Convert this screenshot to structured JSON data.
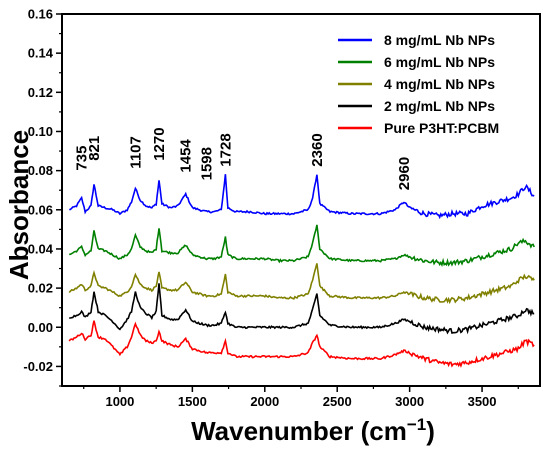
{
  "chart_data": {
    "type": "line",
    "title": "",
    "xlabel": "Wavenumber (cm",
    "xlabel_sup": "−1",
    "xlabel_close": ")",
    "ylabel": "Absorbance",
    "xlim": [
      600,
      3900
    ],
    "ylim": [
      -0.03,
      0.16
    ],
    "x_ticks": [
      1000,
      1500,
      2000,
      2500,
      3000,
      3500
    ],
    "y_ticks": [
      -0.02,
      0.0,
      0.02,
      0.04,
      0.06,
      0.08,
      0.1,
      0.12,
      0.14,
      0.16
    ],
    "y_tick_labels": [
      "-0.02",
      "0.00",
      "0.02",
      "0.04",
      "0.06",
      "0.08",
      "0.10",
      "0.12",
      "0.14",
      "0.16"
    ],
    "grid": false,
    "legend_position": "top-right",
    "peak_annotations": [
      "735",
      "821",
      "1107",
      "1270",
      "1454",
      "1598",
      "1728",
      "2360",
      "2960"
    ],
    "peak_positions": [
      735,
      821,
      1107,
      1270,
      1454,
      1598,
      1728,
      2360,
      2960
    ],
    "series": [
      {
        "name": "8 mg/mL Nb NPs",
        "color": "#0000ff",
        "baseline": 0.058,
        "points": [
          [
            650,
            0.06
          ],
          [
            700,
            0.062
          ],
          [
            735,
            0.066
          ],
          [
            760,
            0.059
          ],
          [
            800,
            0.062
          ],
          [
            821,
            0.073
          ],
          [
            850,
            0.062
          ],
          [
            900,
            0.061
          ],
          [
            950,
            0.06
          ],
          [
            1000,
            0.058
          ],
          [
            1050,
            0.06
          ],
          [
            1080,
            0.064
          ],
          [
            1107,
            0.071
          ],
          [
            1140,
            0.065
          ],
          [
            1180,
            0.062
          ],
          [
            1220,
            0.061
          ],
          [
            1250,
            0.063
          ],
          [
            1270,
            0.075
          ],
          [
            1290,
            0.063
          ],
          [
            1350,
            0.061
          ],
          [
            1400,
            0.062
          ],
          [
            1454,
            0.068
          ],
          [
            1500,
            0.061
          ],
          [
            1550,
            0.06
          ],
          [
            1598,
            0.059
          ],
          [
            1650,
            0.059
          ],
          [
            1700,
            0.06
          ],
          [
            1728,
            0.078
          ],
          [
            1745,
            0.061
          ],
          [
            1800,
            0.059
          ],
          [
            1900,
            0.059
          ],
          [
            2000,
            0.058
          ],
          [
            2100,
            0.058
          ],
          [
            2200,
            0.058
          ],
          [
            2300,
            0.06
          ],
          [
            2330,
            0.066
          ],
          [
            2360,
            0.078
          ],
          [
            2380,
            0.063
          ],
          [
            2450,
            0.059
          ],
          [
            2600,
            0.058
          ],
          [
            2800,
            0.058
          ],
          [
            2900,
            0.06
          ],
          [
            2960,
            0.064
          ],
          [
            3000,
            0.061
          ],
          [
            3100,
            0.058
          ],
          [
            3200,
            0.057
          ],
          [
            3300,
            0.058
          ],
          [
            3400,
            0.058
          ],
          [
            3500,
            0.062
          ],
          [
            3600,
            0.064
          ],
          [
            3700,
            0.066
          ],
          [
            3750,
            0.068
          ],
          [
            3800,
            0.072
          ],
          [
            3860,
            0.067
          ]
        ]
      },
      {
        "name": "6 mg/mL Nb NPs",
        "color": "#008000",
        "baseline": 0.036,
        "points": [
          [
            650,
            0.037
          ],
          [
            700,
            0.039
          ],
          [
            735,
            0.041
          ],
          [
            760,
            0.037
          ],
          [
            800,
            0.039
          ],
          [
            821,
            0.049
          ],
          [
            850,
            0.04
          ],
          [
            900,
            0.039
          ],
          [
            950,
            0.037
          ],
          [
            1000,
            0.035
          ],
          [
            1050,
            0.037
          ],
          [
            1080,
            0.04
          ],
          [
            1107,
            0.047
          ],
          [
            1140,
            0.041
          ],
          [
            1180,
            0.039
          ],
          [
            1220,
            0.038
          ],
          [
            1250,
            0.04
          ],
          [
            1270,
            0.051
          ],
          [
            1290,
            0.039
          ],
          [
            1350,
            0.038
          ],
          [
            1400,
            0.038
          ],
          [
            1454,
            0.042
          ],
          [
            1500,
            0.037
          ],
          [
            1550,
            0.036
          ],
          [
            1598,
            0.035
          ],
          [
            1650,
            0.035
          ],
          [
            1700,
            0.036
          ],
          [
            1728,
            0.046
          ],
          [
            1745,
            0.037
          ],
          [
            1800,
            0.035
          ],
          [
            1900,
            0.035
          ],
          [
            2000,
            0.035
          ],
          [
            2100,
            0.034
          ],
          [
            2200,
            0.034
          ],
          [
            2300,
            0.036
          ],
          [
            2330,
            0.043
          ],
          [
            2360,
            0.052
          ],
          [
            2380,
            0.04
          ],
          [
            2450,
            0.035
          ],
          [
            2600,
            0.034
          ],
          [
            2800,
            0.034
          ],
          [
            2900,
            0.035
          ],
          [
            2960,
            0.037
          ],
          [
            3000,
            0.036
          ],
          [
            3100,
            0.034
          ],
          [
            3200,
            0.033
          ],
          [
            3300,
            0.033
          ],
          [
            3400,
            0.034
          ],
          [
            3500,
            0.036
          ],
          [
            3600,
            0.038
          ],
          [
            3700,
            0.04
          ],
          [
            3750,
            0.043
          ],
          [
            3800,
            0.044
          ],
          [
            3860,
            0.041
          ]
        ]
      },
      {
        "name": "4 mg/mL Nb NPs",
        "color": "#808000",
        "baseline": 0.018,
        "points": [
          [
            650,
            0.018
          ],
          [
            700,
            0.02
          ],
          [
            735,
            0.022
          ],
          [
            760,
            0.019
          ],
          [
            800,
            0.021
          ],
          [
            821,
            0.028
          ],
          [
            850,
            0.021
          ],
          [
            900,
            0.02
          ],
          [
            950,
            0.018
          ],
          [
            1000,
            0.016
          ],
          [
            1050,
            0.018
          ],
          [
            1080,
            0.021
          ],
          [
            1107,
            0.027
          ],
          [
            1140,
            0.022
          ],
          [
            1180,
            0.02
          ],
          [
            1220,
            0.019
          ],
          [
            1250,
            0.021
          ],
          [
            1270,
            0.028
          ],
          [
            1290,
            0.02
          ],
          [
            1350,
            0.019
          ],
          [
            1400,
            0.019
          ],
          [
            1454,
            0.023
          ],
          [
            1500,
            0.018
          ],
          [
            1550,
            0.017
          ],
          [
            1598,
            0.016
          ],
          [
            1650,
            0.016
          ],
          [
            1700,
            0.017
          ],
          [
            1728,
            0.027
          ],
          [
            1745,
            0.018
          ],
          [
            1800,
            0.016
          ],
          [
            1900,
            0.016
          ],
          [
            2000,
            0.016
          ],
          [
            2100,
            0.015
          ],
          [
            2200,
            0.015
          ],
          [
            2300,
            0.017
          ],
          [
            2330,
            0.024
          ],
          [
            2360,
            0.033
          ],
          [
            2380,
            0.021
          ],
          [
            2450,
            0.016
          ],
          [
            2600,
            0.015
          ],
          [
            2800,
            0.015
          ],
          [
            2900,
            0.016
          ],
          [
            2960,
            0.018
          ],
          [
            3000,
            0.017
          ],
          [
            3100,
            0.015
          ],
          [
            3200,
            0.014
          ],
          [
            3300,
            0.014
          ],
          [
            3400,
            0.015
          ],
          [
            3500,
            0.017
          ],
          [
            3600,
            0.019
          ],
          [
            3700,
            0.021
          ],
          [
            3750,
            0.024
          ],
          [
            3800,
            0.026
          ],
          [
            3860,
            0.024
          ]
        ]
      },
      {
        "name": "2 mg/mL Nb NPs",
        "color": "#000000",
        "baseline": 0.004,
        "points": [
          [
            650,
            0.005
          ],
          [
            700,
            0.006
          ],
          [
            735,
            0.008
          ],
          [
            760,
            0.005
          ],
          [
            800,
            0.008
          ],
          [
            821,
            0.018
          ],
          [
            850,
            0.008
          ],
          [
            900,
            0.006
          ],
          [
            950,
            0.003
          ],
          [
            1000,
            -0.001
          ],
          [
            1050,
            0.004
          ],
          [
            1080,
            0.008
          ],
          [
            1107,
            0.018
          ],
          [
            1140,
            0.01
          ],
          [
            1180,
            0.007
          ],
          [
            1220,
            0.005
          ],
          [
            1250,
            0.008
          ],
          [
            1270,
            0.022
          ],
          [
            1290,
            0.006
          ],
          [
            1350,
            0.004
          ],
          [
            1400,
            0.004
          ],
          [
            1454,
            0.009
          ],
          [
            1500,
            0.003
          ],
          [
            1550,
            0.002
          ],
          [
            1598,
            0.001
          ],
          [
            1650,
            0.001
          ],
          [
            1700,
            0.002
          ],
          [
            1728,
            0.008
          ],
          [
            1745,
            0.002
          ],
          [
            1800,
            0.0
          ],
          [
            1900,
            0.0
          ],
          [
            2000,
            0.0
          ],
          [
            2100,
            0.0
          ],
          [
            2200,
            0.0
          ],
          [
            2300,
            0.002
          ],
          [
            2330,
            0.009
          ],
          [
            2360,
            0.017
          ],
          [
            2380,
            0.006
          ],
          [
            2450,
            0.001
          ],
          [
            2600,
            0.0
          ],
          [
            2800,
            0.0
          ],
          [
            2900,
            0.002
          ],
          [
            2960,
            0.004
          ],
          [
            3000,
            0.003
          ],
          [
            3100,
            0.0
          ],
          [
            3200,
            -0.001
          ],
          [
            3300,
            -0.002
          ],
          [
            3400,
            -0.001
          ],
          [
            3500,
            0.001
          ],
          [
            3600,
            0.003
          ],
          [
            3700,
            0.005
          ],
          [
            3750,
            0.006
          ],
          [
            3800,
            0.009
          ],
          [
            3860,
            0.007
          ]
        ]
      },
      {
        "name": "Pure P3HT:PCBM",
        "color": "#ff0000",
        "baseline": -0.008,
        "points": [
          [
            650,
            -0.007
          ],
          [
            700,
            -0.005
          ],
          [
            735,
            -0.003
          ],
          [
            760,
            -0.006
          ],
          [
            800,
            -0.004
          ],
          [
            821,
            0.003
          ],
          [
            850,
            -0.005
          ],
          [
            900,
            -0.006
          ],
          [
            950,
            -0.01
          ],
          [
            1000,
            -0.014
          ],
          [
            1050,
            -0.01
          ],
          [
            1080,
            -0.005
          ],
          [
            1107,
            0.002
          ],
          [
            1140,
            -0.004
          ],
          [
            1180,
            -0.007
          ],
          [
            1220,
            -0.008
          ],
          [
            1250,
            -0.007
          ],
          [
            1270,
            -0.002
          ],
          [
            1290,
            -0.007
          ],
          [
            1350,
            -0.009
          ],
          [
            1400,
            -0.01
          ],
          [
            1454,
            -0.006
          ],
          [
            1500,
            -0.011
          ],
          [
            1550,
            -0.012
          ],
          [
            1598,
            -0.013
          ],
          [
            1650,
            -0.013
          ],
          [
            1700,
            -0.013
          ],
          [
            1728,
            -0.007
          ],
          [
            1745,
            -0.013
          ],
          [
            1800,
            -0.015
          ],
          [
            1900,
            -0.015
          ],
          [
            2000,
            -0.015
          ],
          [
            2100,
            -0.015
          ],
          [
            2200,
            -0.015
          ],
          [
            2300,
            -0.013
          ],
          [
            2330,
            -0.008
          ],
          [
            2360,
            -0.004
          ],
          [
            2380,
            -0.01
          ],
          [
            2450,
            -0.015
          ],
          [
            2600,
            -0.016
          ],
          [
            2800,
            -0.016
          ],
          [
            2900,
            -0.014
          ],
          [
            2960,
            -0.012
          ],
          [
            3000,
            -0.013
          ],
          [
            3100,
            -0.016
          ],
          [
            3200,
            -0.018
          ],
          [
            3300,
            -0.019
          ],
          [
            3400,
            -0.018
          ],
          [
            3500,
            -0.016
          ],
          [
            3600,
            -0.014
          ],
          [
            3700,
            -0.012
          ],
          [
            3750,
            -0.011
          ],
          [
            3800,
            -0.007
          ],
          [
            3860,
            -0.009
          ]
        ]
      }
    ]
  }
}
